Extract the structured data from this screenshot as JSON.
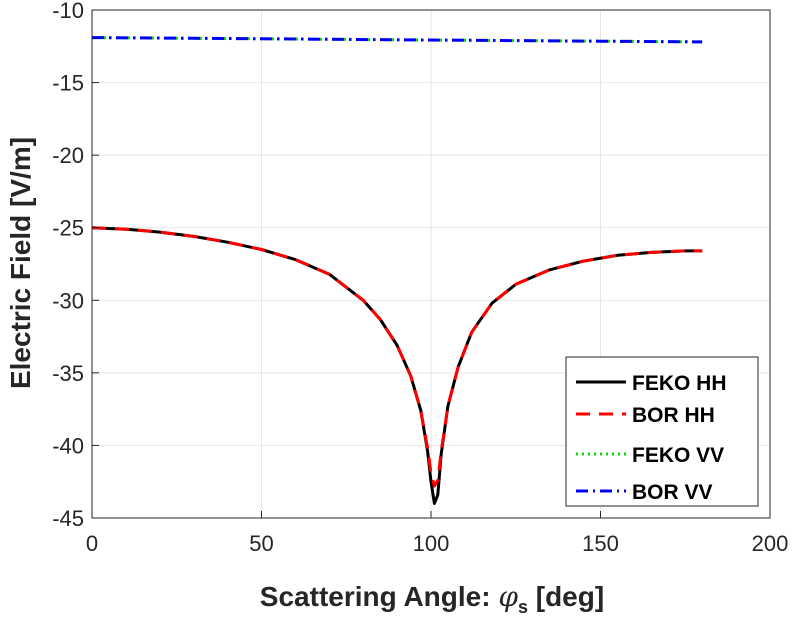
{
  "chart_data": {
    "type": "line",
    "xlabel": "Scattering Angle: ",
    "xlabel_symbol": "φ",
    "xlabel_subscript": "s",
    "xlabel_unit": " [deg]",
    "ylabel": "Electric Field [V/m]",
    "xlim": [
      0,
      200
    ],
    "ylim": [
      -45,
      -10
    ],
    "xticks": [
      "0",
      "50",
      "100",
      "150",
      "200"
    ],
    "yticks": [
      "-10",
      "-15",
      "-20",
      "-25",
      "-30",
      "-35",
      "-40",
      "-45"
    ],
    "grid": true,
    "legend_position": "bottom-right",
    "series": [
      {
        "name": "FEKO HH",
        "color": "#000000",
        "style": "solid",
        "x": [
          0,
          10,
          20,
          30,
          40,
          50,
          60,
          70,
          80,
          85,
          90,
          94,
          97,
          99,
          100,
          101,
          102,
          103,
          105,
          108,
          112,
          118,
          125,
          135,
          145,
          155,
          165,
          175,
          180
        ],
        "y": [
          -25.0,
          -25.1,
          -25.3,
          -25.6,
          -26.0,
          -26.5,
          -27.2,
          -28.2,
          -30.0,
          -31.3,
          -33.1,
          -35.2,
          -37.6,
          -40.4,
          -42.5,
          -44.0,
          -43.4,
          -40.6,
          -37.3,
          -34.6,
          -32.2,
          -30.2,
          -28.9,
          -27.9,
          -27.3,
          -26.9,
          -26.7,
          -26.6,
          -26.6
        ]
      },
      {
        "name": "BOR HH",
        "color": "#ff0000",
        "style": "dashed",
        "x": [
          0,
          10,
          20,
          30,
          40,
          50,
          60,
          70,
          80,
          85,
          90,
          94,
          97,
          99,
          100,
          101,
          102,
          103,
          105,
          108,
          112,
          118,
          125,
          135,
          145,
          155,
          165,
          175,
          180
        ],
        "y": [
          -25.0,
          -25.1,
          -25.3,
          -25.6,
          -26.0,
          -26.5,
          -27.2,
          -28.2,
          -30.0,
          -31.3,
          -33.1,
          -35.2,
          -37.6,
          -40.2,
          -41.9,
          -42.8,
          -42.4,
          -40.4,
          -37.3,
          -34.6,
          -32.2,
          -30.2,
          -28.9,
          -27.9,
          -27.3,
          -26.9,
          -26.7,
          -26.6,
          -26.6
        ]
      },
      {
        "name": "FEKO VV",
        "color": "#00e000",
        "style": "dotted",
        "x": [
          0,
          30,
          60,
          90,
          120,
          150,
          180
        ],
        "y": [
          -11.9,
          -11.95,
          -12.0,
          -12.05,
          -12.1,
          -12.15,
          -12.2
        ]
      },
      {
        "name": "BOR VV",
        "color": "#0000ff",
        "style": "dashdot",
        "x": [
          0,
          30,
          60,
          90,
          120,
          150,
          180
        ],
        "y": [
          -11.9,
          -11.95,
          -12.0,
          -12.05,
          -12.1,
          -12.15,
          -12.2
        ]
      }
    ]
  }
}
